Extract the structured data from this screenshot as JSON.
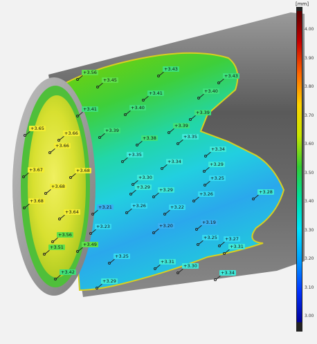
{
  "scale": {
    "unit": "[mm]",
    "ticks": [
      "4.00",
      "3.90",
      "3.80",
      "3.70",
      "3.60",
      "3.50",
      "3.40",
      "3.30",
      "3.20",
      "3.10",
      "3.00"
    ],
    "colors": [
      "#5a0000",
      "#c80000",
      "#ff6600",
      "#ffd200",
      "#c8e600",
      "#33cc33",
      "#00e0a0",
      "#00e5ff",
      "#00a0ff",
      "#0033ff",
      "#000099"
    ]
  },
  "measurements": [
    {
      "value": "+3.56"
    },
    {
      "value": "+3.45"
    },
    {
      "value": "+3.43"
    },
    {
      "value": "+3.43"
    },
    {
      "value": "+3.41"
    },
    {
      "value": "+3.40"
    },
    {
      "value": "+3.41"
    },
    {
      "value": "+3.40"
    },
    {
      "value": "+3.39"
    },
    {
      "value": "+3.65"
    },
    {
      "value": "+3.66"
    },
    {
      "value": "+3.39"
    },
    {
      "value": "+3.39"
    },
    {
      "value": "+3.38"
    },
    {
      "value": "+3.66"
    },
    {
      "value": "+3.35"
    },
    {
      "value": "+3.34"
    },
    {
      "value": "+3.35"
    },
    {
      "value": "+3.34"
    },
    {
      "value": "+3.67"
    },
    {
      "value": "+3.68"
    },
    {
      "value": "+3.29"
    },
    {
      "value": "+3.30"
    },
    {
      "value": "+3.25"
    },
    {
      "value": "+3.29"
    },
    {
      "value": "+3.29"
    },
    {
      "value": "+3.68"
    },
    {
      "value": "+3.68"
    },
    {
      "value": "+3.26"
    },
    {
      "value": "+3.21"
    },
    {
      "value": "+3.28"
    },
    {
      "value": "+3.26"
    },
    {
      "value": "+3.22"
    },
    {
      "value": "+3.64"
    },
    {
      "value": "+3.23"
    },
    {
      "value": "+3.20"
    },
    {
      "value": "+3.19"
    },
    {
      "value": "+3.56"
    },
    {
      "value": "+3.25"
    },
    {
      "value": "+3.27"
    },
    {
      "value": "+3.49"
    },
    {
      "value": "+3.51"
    },
    {
      "value": "+3.31"
    },
    {
      "value": "+3.25"
    },
    {
      "value": "+3.31"
    },
    {
      "value": "+3.30"
    },
    {
      "value": "+3.42"
    },
    {
      "value": "+3.34"
    },
    {
      "value": "+3.29"
    }
  ]
}
